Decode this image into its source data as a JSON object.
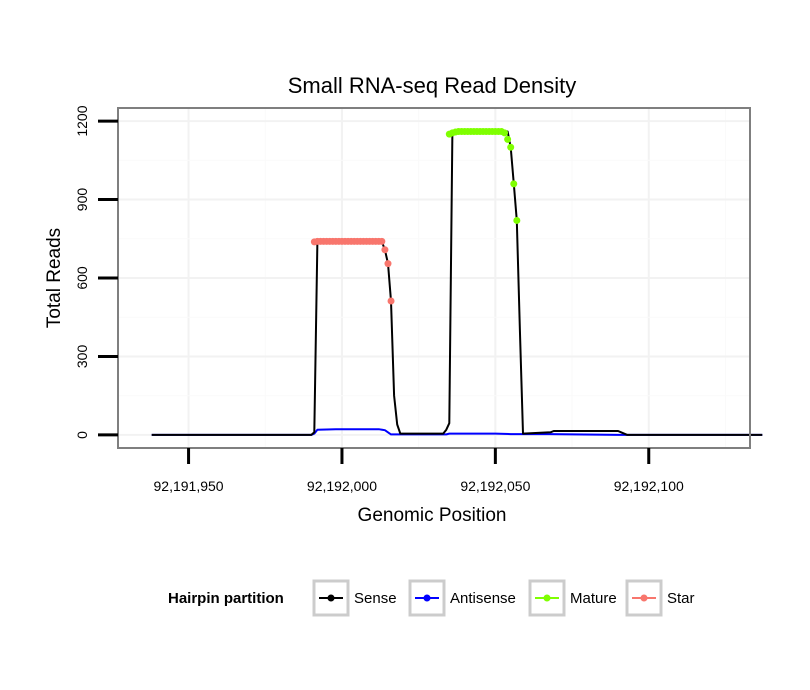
{
  "chart_data": {
    "type": "line",
    "title": "Small RNA-seq Read Density",
    "xlabel": "Genomic Position",
    "ylabel": "Total Reads",
    "xlim": [
      92191927,
      92192133
    ],
    "ylim": [
      -50,
      1250
    ],
    "x_ticks": [
      92191950,
      92192000,
      92192050,
      92192100
    ],
    "x_tick_labels": [
      "92,191,950",
      "92,192,000",
      "92,192,050",
      "92,192,100"
    ],
    "y_ticks": [
      0,
      300,
      600,
      900,
      1200
    ],
    "y_tick_labels": [
      "0",
      "300",
      "600",
      "900",
      "1200"
    ],
    "grid": true,
    "legend": {
      "title": "Hairpin partition",
      "position": "bottom",
      "entries": [
        {
          "name": "Sense",
          "color": "#000000"
        },
        {
          "name": "Antisense",
          "color": "#0000ff"
        },
        {
          "name": "Mature",
          "color": "#7fff00"
        },
        {
          "name": "Star",
          "color": "#f8766d"
        }
      ]
    },
    "series": [
      {
        "name": "Sense",
        "color": "#000000",
        "x": [
          92191938,
          92191990,
          92191991,
          92191992,
          92192013,
          92192014,
          92192015,
          92192016,
          92192017,
          92192018,
          92192019,
          92192033,
          92192034,
          92192035,
          92192036,
          92192054,
          92192055,
          92192056,
          92192057,
          92192058,
          92192059,
          92192068,
          92192069,
          92192090,
          92192091,
          92192093,
          92192137
        ],
        "y": [
          0,
          0,
          10,
          740,
          740,
          708,
          655,
          512,
          150,
          40,
          5,
          5,
          20,
          45,
          1160,
          1160,
          1100,
          960,
          820,
          400,
          5,
          10,
          15,
          15,
          10,
          0,
          0
        ]
      },
      {
        "name": "Antisense",
        "color": "#0000ff",
        "x": [
          92191938,
          92191990,
          92191991,
          92191992,
          92191998,
          92192012,
          92192014,
          92192016,
          92192034,
          92192035,
          92192050,
          92192055,
          92192068,
          92192090,
          92192137
        ],
        "y": [
          0,
          0,
          5,
          20,
          22,
          22,
          18,
          2,
          2,
          5,
          5,
          3,
          3,
          0,
          0
        ]
      },
      {
        "name": "Mature",
        "color": "#7fff00",
        "x": [
          92192035,
          92192036,
          92192037,
          92192038,
          92192039,
          92192040,
          92192041,
          92192042,
          92192043,
          92192044,
          92192045,
          92192046,
          92192047,
          92192048,
          92192049,
          92192050,
          92192051,
          92192052,
          92192053,
          92192054,
          92192055,
          92192056,
          92192057
        ],
        "y": [
          1150,
          1155,
          1158,
          1160,
          1160,
          1160,
          1160,
          1160,
          1160,
          1160,
          1160,
          1160,
          1160,
          1160,
          1160,
          1160,
          1160,
          1160,
          1155,
          1130,
          1100,
          960,
          820
        ]
      },
      {
        "name": "Star",
        "color": "#f8766d",
        "x": [
          92191991,
          92191992,
          92191993,
          92191994,
          92191995,
          92191996,
          92191997,
          92191998,
          92191999,
          92192000,
          92192001,
          92192002,
          92192003,
          92192004,
          92192005,
          92192006,
          92192007,
          92192008,
          92192009,
          92192010,
          92192011,
          92192012,
          92192013,
          92192014,
          92192015,
          92192016
        ],
        "y": [
          738,
          740,
          740,
          740,
          740,
          740,
          740,
          740,
          740,
          740,
          740,
          740,
          740,
          740,
          740,
          740,
          740,
          740,
          740,
          740,
          740,
          740,
          740,
          708,
          655,
          512
        ]
      }
    ]
  }
}
